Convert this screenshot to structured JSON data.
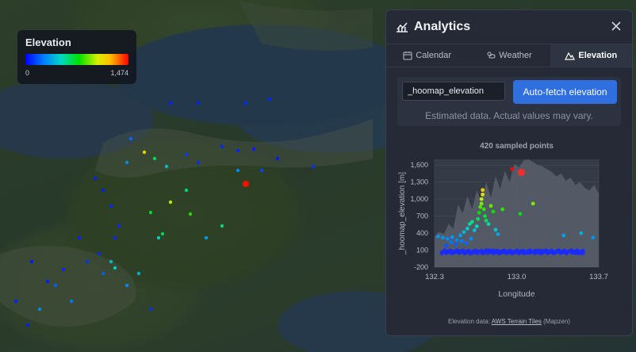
{
  "map": {
    "legend": {
      "title": "Elevation",
      "min_label": "0",
      "max_label": "1,474"
    }
  },
  "panel": {
    "title": "Analytics",
    "tabs": [
      {
        "label": "Calendar",
        "icon": "calendar-icon",
        "active": false
      },
      {
        "label": "Weather",
        "icon": "weather-icon",
        "active": false
      },
      {
        "label": "Elevation",
        "icon": "mountain-icon",
        "active": true
      }
    ],
    "field_value": "_hoomap_elevation",
    "fetch_button": "Auto-fetch elevation",
    "note": "Estimated data. Actual values may vary.",
    "footer_prefix": "Elevation data:",
    "footer_link": "AWS Terrain Tiles",
    "footer_suffix": "(Mapzen)"
  },
  "chart_data": {
    "type": "scatter",
    "title": "420 sampled points",
    "xlabel": "Longitude",
    "ylabel": "_hoomap_elevation [m]",
    "xlim": [
      132.3,
      133.7
    ],
    "ylim": [
      -200,
      1700
    ],
    "x_ticks": [
      "132.3",
      "133.0",
      "133.7"
    ],
    "y_ticks": [
      "-200",
      "100",
      "400",
      "700",
      "1,000",
      "1,300",
      "1,600"
    ],
    "x_tick_values": [
      132.3,
      133.0,
      133.7
    ],
    "y_tick_values": [
      -200,
      100,
      400,
      700,
      1000,
      1300,
      1600
    ],
    "profile": {
      "x": [
        132.3,
        132.34,
        132.38,
        132.42,
        132.46,
        132.5,
        132.54,
        132.58,
        132.62,
        132.66,
        132.7,
        132.74,
        132.78,
        132.82,
        132.86,
        132.9,
        132.94,
        132.98,
        133.02,
        133.06,
        133.1,
        133.14,
        133.18,
        133.22,
        133.26,
        133.3,
        133.34,
        133.38,
        133.42,
        133.46,
        133.5,
        133.54,
        133.58,
        133.62,
        133.66,
        133.7
      ],
      "y": [
        350,
        420,
        380,
        560,
        480,
        900,
        750,
        1050,
        820,
        1150,
        950,
        1300,
        1020,
        1400,
        1180,
        1500,
        1300,
        1620,
        1560,
        1680,
        1700,
        1650,
        1600,
        1580,
        1520,
        1480,
        1400,
        1450,
        1320,
        1380,
        1250,
        1300,
        1200,
        1150,
        1250,
        1100
      ]
    },
    "points": [
      {
        "x": 132.33,
        "y": 340
      },
      {
        "x": 132.37,
        "y": 320
      },
      {
        "x": 132.41,
        "y": 300
      },
      {
        "x": 132.45,
        "y": 330
      },
      {
        "x": 132.49,
        "y": 280
      },
      {
        "x": 132.52,
        "y": 360
      },
      {
        "x": 132.55,
        "y": 420
      },
      {
        "x": 132.58,
        "y": 480
      },
      {
        "x": 132.6,
        "y": 560
      },
      {
        "x": 132.62,
        "y": 600
      },
      {
        "x": 132.64,
        "y": 450
      },
      {
        "x": 132.66,
        "y": 520
      },
      {
        "x": 132.67,
        "y": 650
      },
      {
        "x": 132.68,
        "y": 760
      },
      {
        "x": 132.69,
        "y": 860
      },
      {
        "x": 132.7,
        "y": 920
      },
      {
        "x": 132.7,
        "y": 1000
      },
      {
        "x": 132.71,
        "y": 1080
      },
      {
        "x": 132.71,
        "y": 1160
      },
      {
        "x": 132.72,
        "y": 820
      },
      {
        "x": 132.73,
        "y": 700
      },
      {
        "x": 132.74,
        "y": 620
      },
      {
        "x": 132.76,
        "y": 560
      },
      {
        "x": 132.78,
        "y": 880
      },
      {
        "x": 132.8,
        "y": 780
      },
      {
        "x": 132.82,
        "y": 460
      },
      {
        "x": 132.84,
        "y": 380
      },
      {
        "x": 132.88,
        "y": 820
      },
      {
        "x": 132.96,
        "y": 1530
      },
      {
        "x": 133.03,
        "y": 740
      },
      {
        "x": 133.14,
        "y": 920
      },
      {
        "x": 133.4,
        "y": 360
      },
      {
        "x": 133.55,
        "y": 400
      },
      {
        "x": 133.65,
        "y": 320
      },
      {
        "x": 132.4,
        "y": 180
      },
      {
        "x": 132.44,
        "y": 240
      },
      {
        "x": 132.48,
        "y": 200
      },
      {
        "x": 132.53,
        "y": 260
      },
      {
        "x": 132.57,
        "y": 220
      },
      {
        "x": 132.61,
        "y": 300
      }
    ],
    "baseline_points_note": "dense blue cluster near 0-100 m",
    "grid": true
  }
}
